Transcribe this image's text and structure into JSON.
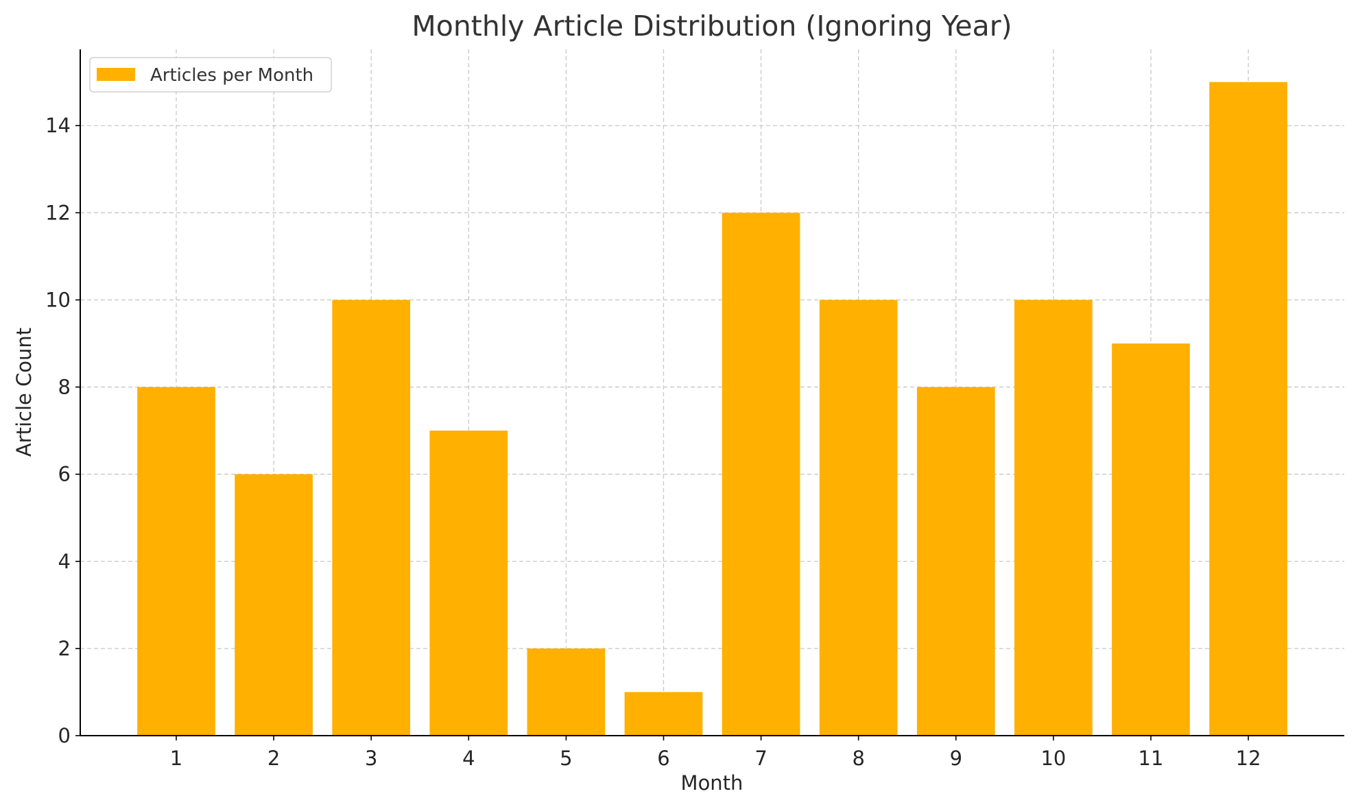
{
  "chart_data": {
    "type": "bar",
    "title": "Monthly Article Distribution (Ignoring Year)",
    "xlabel": "Month",
    "ylabel": "Article Count",
    "categories": [
      "1",
      "2",
      "3",
      "4",
      "5",
      "6",
      "7",
      "8",
      "9",
      "10",
      "11",
      "12"
    ],
    "series": [
      {
        "name": "Articles per Month",
        "color": "#FFB000",
        "values": [
          8,
          6,
          10,
          7,
          2,
          1,
          12,
          10,
          8,
          10,
          9,
          15
        ]
      }
    ],
    "ylim": [
      0,
      15.75
    ],
    "yticks": [
      0,
      2,
      4,
      6,
      8,
      10,
      12,
      14
    ],
    "grid": true,
    "legend": "upper-left"
  }
}
